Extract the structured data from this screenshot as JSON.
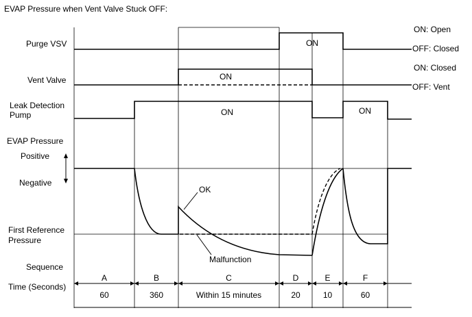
{
  "title": "EVAP Pressure when Vent Valve Stuck OFF:",
  "rows": {
    "purge_vsv": "Purge VSV",
    "vent_valve": "Vent Valve",
    "leak_pump_line1": "Leak Detection",
    "leak_pump_line2": "Pump",
    "evap_pressure": "EVAP Pressure",
    "positive": "Positive",
    "negative": "Negative",
    "first_ref_line1": "First Reference",
    "first_ref_line2": "Pressure",
    "sequence": "Sequence",
    "time": "Time (Seconds)"
  },
  "right_labels": {
    "purge_on": "ON: Open",
    "purge_off": "OFF: Closed",
    "vent_on": "ON: Closed",
    "vent_off": "OFF: Vent"
  },
  "on_labels": {
    "purge": "ON",
    "vent": "ON",
    "pump_main": "ON",
    "pump_f": "ON"
  },
  "annotations": {
    "ok": "OK",
    "malfunction": "Malfunction"
  },
  "sequence": [
    {
      "letter": "A",
      "time": "60"
    },
    {
      "letter": "B",
      "time": "360"
    },
    {
      "letter": "C",
      "time": "Within 15 minutes"
    },
    {
      "letter": "D",
      "time": "20"
    },
    {
      "letter": "E",
      "time": "10"
    },
    {
      "letter": "F",
      "time": "60"
    }
  ]
}
